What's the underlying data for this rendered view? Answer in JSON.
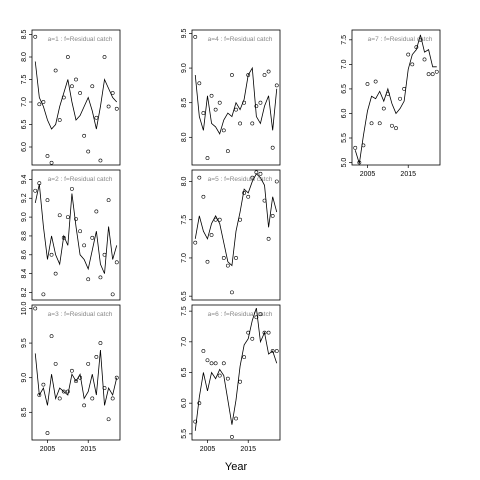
{
  "chart_data": [
    {
      "type": "line",
      "title": "a=1  :  f=Residual catch",
      "x": [
        2002,
        2003,
        2004,
        2005,
        2006,
        2007,
        2008,
        2009,
        2010,
        2011,
        2012,
        2013,
        2014,
        2015,
        2016,
        2017,
        2018,
        2019,
        2020,
        2021,
        2022
      ],
      "xlim": [
        2001.2,
        2022.8
      ],
      "ylim": [
        5.6,
        8.6
      ],
      "yticks": [
        {
          "value": 6,
          "label": "6.0"
        },
        6.5,
        {
          "value": 7,
          "label": "7.0"
        },
        7.5,
        {
          "value": 8,
          "label": "8.0"
        },
        8.5
      ],
      "series": [
        {
          "style": "line",
          "color": "#000000",
          "values": [
            7.9,
            7.1,
            6.9,
            6.6,
            6.4,
            6.5,
            6.9,
            7.2,
            7.5,
            7.0,
            6.6,
            6.7,
            6.9,
            7.1,
            6.8,
            6.4,
            6.9,
            7.5,
            7.3,
            7.1,
            7.0
          ]
        },
        {
          "style": "points",
          "color": "#000000",
          "values": [
            8.45,
            6.95,
            7.0,
            5.8,
            5.65,
            7.7,
            6.6,
            7.1,
            8.0,
            7.35,
            7.5,
            7.2,
            6.25,
            5.9,
            7.35,
            6.65,
            5.7,
            8.0,
            6.9,
            7.2,
            6.85
          ]
        }
      ]
    },
    {
      "type": "line",
      "title": "a=2  :  f=Residual catch",
      "x": [
        2002,
        2003,
        2004,
        2005,
        2006,
        2007,
        2008,
        2009,
        2010,
        2011,
        2012,
        2013,
        2014,
        2015,
        2016,
        2017,
        2018,
        2019,
        2020,
        2021,
        2022
      ],
      "xlim": [
        2001.2,
        2022.8
      ],
      "ylim": [
        8.12,
        9.5
      ],
      "yticks": [
        8.2,
        8.4,
        8.6,
        8.8,
        {
          "value": 9,
          "label": "9.0"
        },
        9.2,
        9.4
      ],
      "series": [
        {
          "style": "line",
          "color": "#000000",
          "values": [
            9.15,
            9.35,
            8.9,
            8.55,
            8.8,
            8.6,
            8.5,
            8.8,
            8.7,
            9.25,
            8.9,
            8.6,
            8.55,
            8.45,
            8.65,
            8.85,
            8.5,
            8.4,
            8.9,
            8.55,
            8.7
          ]
        },
        {
          "style": "points",
          "color": "#000000",
          "values": [
            9.28,
            9.36,
            8.18,
            9.18,
            8.6,
            8.4,
            9.02,
            8.78,
            9.0,
            9.3,
            8.98,
            8.85,
            8.7,
            8.34,
            8.78,
            9.06,
            8.36,
            8.6,
            9.18,
            8.18,
            8.52
          ]
        }
      ]
    },
    {
      "type": "line",
      "title": "a=3  :  f=Residual catch",
      "x": [
        2002,
        2003,
        2004,
        2005,
        2006,
        2007,
        2008,
        2009,
        2010,
        2011,
        2012,
        2013,
        2014,
        2015,
        2016,
        2017,
        2018,
        2019,
        2020,
        2021,
        2022
      ],
      "xlim": [
        2001.2,
        2022.8
      ],
      "ylim": [
        8.1,
        10.05
      ],
      "xticks": [
        2005,
        2015
      ],
      "yticks": [
        8.5,
        {
          "value": 9,
          "label": "9.0"
        },
        9.5,
        {
          "value": 10,
          "label": "10.0"
        }
      ],
      "series": [
        {
          "style": "line",
          "color": "#000000",
          "values": [
            9.35,
            8.75,
            8.85,
            8.6,
            9.05,
            8.7,
            8.85,
            8.8,
            8.75,
            9.05,
            8.95,
            9.05,
            8.7,
            8.8,
            9.05,
            8.75,
            9.4,
            8.6,
            8.85,
            8.75,
            9.0
          ]
        },
        {
          "style": "points",
          "color": "#000000",
          "values": [
            10.0,
            8.75,
            8.9,
            8.2,
            9.6,
            9.2,
            8.7,
            8.8,
            8.8,
            9.1,
            8.95,
            9.0,
            8.6,
            9.2,
            8.7,
            9.3,
            9.5,
            8.85,
            8.4,
            8.7,
            9.0
          ]
        }
      ]
    },
    {
      "type": "line",
      "title": "a=4  :  f=Residual catch",
      "x": [
        2002,
        2003,
        2004,
        2005,
        2006,
        2007,
        2008,
        2009,
        2010,
        2011,
        2012,
        2013,
        2014,
        2015,
        2016,
        2017,
        2018,
        2019,
        2020,
        2021,
        2022
      ],
      "xlim": [
        2001.2,
        2022.8
      ],
      "ylim": [
        7.6,
        9.55
      ],
      "yticks": [
        {
          "value": 8,
          "label": "8.0"
        },
        8.5,
        {
          "value": 9,
          "label": "9.0"
        },
        9.5
      ],
      "series": [
        {
          "style": "line",
          "color": "#000000",
          "values": [
            8.9,
            8.3,
            8.1,
            8.6,
            8.2,
            8.15,
            8.05,
            8.25,
            8.35,
            8.3,
            8.5,
            8.4,
            8.55,
            8.9,
            9.0,
            8.3,
            8.2,
            8.45,
            8.6,
            8.1,
            8.7
          ]
        },
        {
          "style": "points",
          "color": "#000000",
          "values": [
            9.45,
            8.78,
            8.35,
            7.7,
            8.6,
            8.4,
            8.5,
            8.1,
            7.8,
            8.9,
            8.4,
            8.2,
            8.5,
            8.9,
            8.2,
            8.45,
            8.5,
            8.9,
            8.95,
            7.85,
            8.75
          ]
        }
      ]
    },
    {
      "type": "line",
      "title": "a=5  :  f=Residual catch",
      "x": [
        2002,
        2003,
        2004,
        2005,
        2006,
        2007,
        2008,
        2009,
        2010,
        2011,
        2012,
        2013,
        2014,
        2015,
        2016,
        2017,
        2018,
        2019,
        2020,
        2021,
        2022
      ],
      "xlim": [
        2001.2,
        2022.8
      ],
      "ylim": [
        6.45,
        8.15
      ],
      "yticks": [
        6.5,
        {
          "value": 7,
          "label": "7.0"
        },
        7.5,
        {
          "value": 8,
          "label": "8.0"
        }
      ],
      "series": [
        {
          "style": "line",
          "color": "#000000",
          "values": [
            7.25,
            7.55,
            7.35,
            7.25,
            7.45,
            7.55,
            7.45,
            7.2,
            6.95,
            6.9,
            7.35,
            7.6,
            7.9,
            7.85,
            8.0,
            8.1,
            8.05,
            7.95,
            7.4,
            7.8,
            7.6
          ]
        },
        {
          "style": "points",
          "color": "#000000",
          "values": [
            7.2,
            8.05,
            7.8,
            6.95,
            7.3,
            7.5,
            7.5,
            7.0,
            6.9,
            6.55,
            7.0,
            7.5,
            7.85,
            7.8,
            8.05,
            8.12,
            8.1,
            7.75,
            7.25,
            7.55,
            8.0
          ]
        }
      ]
    },
    {
      "type": "line",
      "title": "a=6  :  f=Residual catch",
      "xlabel": "Year",
      "x": [
        2002,
        2003,
        2004,
        2005,
        2006,
        2007,
        2008,
        2009,
        2010,
        2011,
        2012,
        2013,
        2014,
        2015,
        2016,
        2017,
        2018,
        2019,
        2020,
        2021,
        2022
      ],
      "xlim": [
        2001.2,
        2022.8
      ],
      "ylim": [
        5.4,
        7.6
      ],
      "xticks": [
        2005,
        2015
      ],
      "yticks": [
        5.5,
        {
          "value": 6,
          "label": "6.0"
        },
        6.5,
        {
          "value": 7,
          "label": "7.0"
        },
        7.5
      ],
      "series": [
        {
          "style": "line",
          "color": "#000000",
          "values": [
            5.55,
            6.1,
            6.5,
            6.2,
            6.5,
            6.4,
            6.55,
            6.45,
            6.05,
            5.65,
            6.05,
            6.6,
            6.95,
            7.05,
            7.35,
            7.55,
            7.0,
            7.15,
            6.8,
            6.85,
            6.65
          ]
        },
        {
          "style": "points",
          "color": "#000000",
          "values": [
            5.7,
            6.0,
            6.85,
            6.7,
            6.65,
            6.65,
            6.45,
            6.65,
            6.4,
            5.45,
            5.75,
            6.35,
            6.75,
            7.15,
            7.05,
            7.4,
            7.45,
            7.15,
            7.15,
            6.85,
            6.85
          ]
        }
      ]
    },
    {
      "type": "line",
      "title": "a=7  :  f=Residual catch",
      "x": [
        2002,
        2003,
        2004,
        2005,
        2006,
        2007,
        2008,
        2009,
        2010,
        2011,
        2012,
        2013,
        2014,
        2015,
        2016,
        2017,
        2018,
        2019,
        2020,
        2021,
        2022
      ],
      "xlim": [
        2001.2,
        2022.8
      ],
      "ylim": [
        4.95,
        7.7
      ],
      "xticks": [
        2005,
        2015
      ],
      "yticks": [
        {
          "value": 5,
          "label": "5.0"
        },
        5.5,
        {
          "value": 6,
          "label": "6.0"
        },
        6.5,
        {
          "value": 7,
          "label": "7.0"
        },
        7.5
      ],
      "series": [
        {
          "style": "line",
          "color": "#000000",
          "values": [
            5.25,
            4.98,
            5.55,
            6.05,
            6.35,
            6.3,
            6.45,
            6.25,
            6.5,
            6.2,
            6.0,
            6.1,
            6.25,
            6.9,
            7.2,
            7.3,
            7.6,
            7.25,
            7.3,
            6.95,
            6.95
          ]
        },
        {
          "style": "points",
          "color": "#000000",
          "values": [
            5.3,
            5.0,
            5.35,
            6.6,
            5.8,
            6.65,
            5.8,
            6.1,
            6.4,
            5.75,
            5.7,
            6.3,
            6.5,
            7.2,
            7.0,
            7.35,
            7.5,
            7.1,
            6.8,
            6.8,
            6.85
          ]
        }
      ]
    }
  ]
}
